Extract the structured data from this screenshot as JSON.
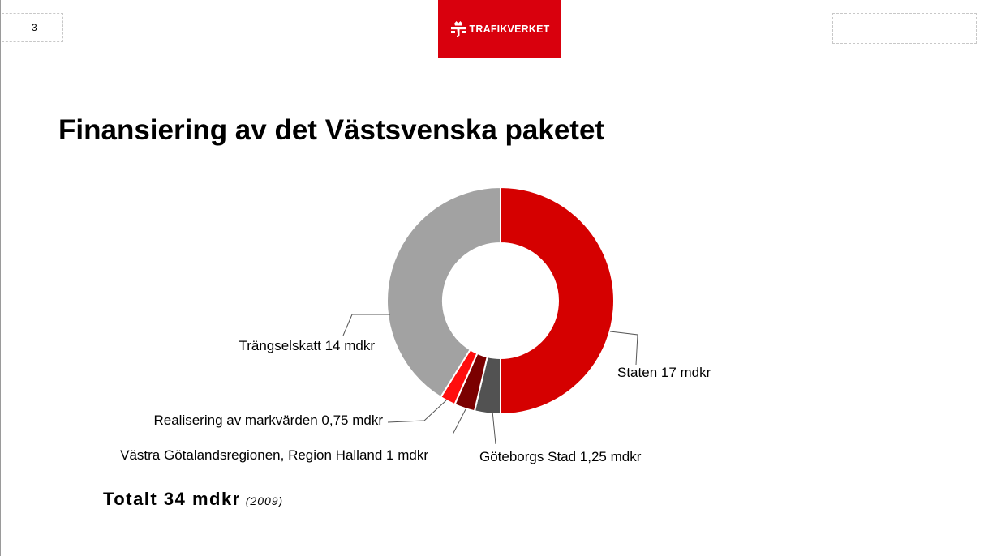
{
  "slide": {
    "page_number": "3",
    "logo_text": "TRAFIKVERKET",
    "title": "Finansiering av det Västsvenska paketet",
    "total_label": "Totalt 34 mdkr",
    "total_year": "(2009)"
  },
  "chart_data": {
    "type": "pie",
    "donut": true,
    "title": "",
    "total": 34,
    "unit": "mdkr",
    "slices": [
      {
        "label": "Staten 17 mdkr",
        "value": 17,
        "color": "#d50000"
      },
      {
        "label": "Göteborgs Stad 1,25 mdkr",
        "value": 1.25,
        "color": "#525252"
      },
      {
        "label": "Västra Götalandsregionen, Region Halland 1 mdkr",
        "value": 1,
        "color": "#7b0000"
      },
      {
        "label": "Realisering av markvärden 0,75 mdkr",
        "value": 0.75,
        "color": "#ff0d0d"
      },
      {
        "label": "Trängselskatt 14 mdkr",
        "value": 14,
        "color": "#a2a2a2"
      }
    ],
    "legend": "none",
    "labels": "outside-with-leader-lines"
  }
}
